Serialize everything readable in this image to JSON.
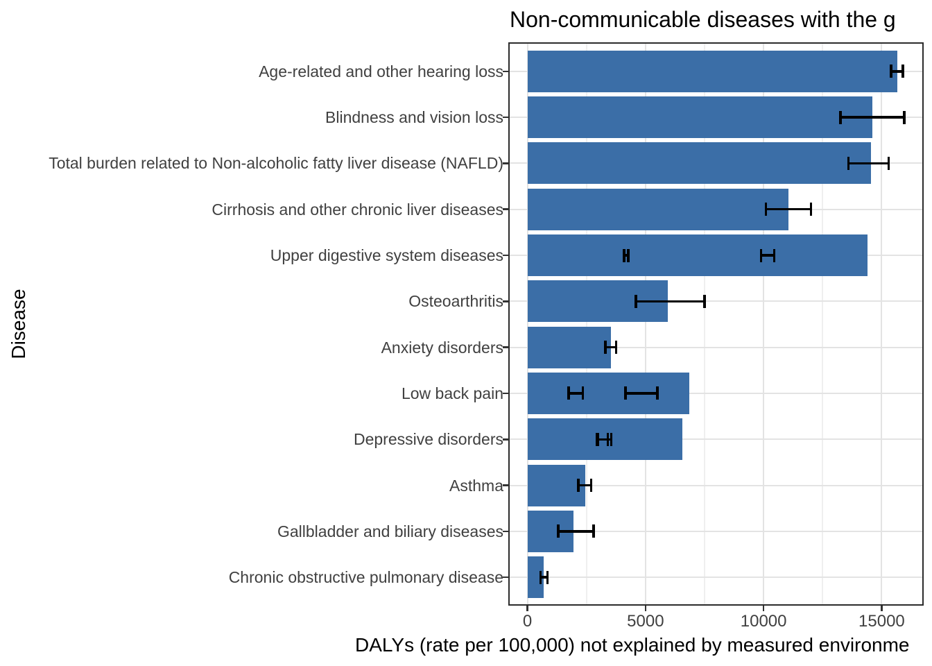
{
  "chart_data": {
    "type": "bar",
    "orientation": "horizontal",
    "title": "Non-communicable diseases with the g",
    "xlabel": "DALYs (rate per 100,000) not explained by measured environme",
    "ylabel": "Disease",
    "legend": "none",
    "grid": "on",
    "xlim": [
      -780,
      16720
    ],
    "x_major_ticks": [
      0,
      5000,
      10000,
      15000
    ],
    "x_tick_labels": [
      "0",
      "5000",
      "10000",
      "15000"
    ],
    "x_minor_ticks": [
      2500,
      7500,
      12500
    ],
    "bar_color": "#3B6EA7",
    "error_bar_color": "#000000",
    "gridline_major_color": "#E3E3E3",
    "gridline_minor_color": "#EFEFEF",
    "panel_border_color": "#2B2B2B",
    "axis_text_color": "#404040",
    "categories": [
      "Age-related and other hearing loss",
      "Blindness and vision loss",
      "Total burden related to Non-alcoholic fatty liver disease (NAFLD)",
      "Cirrhosis and other chronic liver diseases",
      "Upper digestive system diseases",
      "Osteoarthritis",
      "Anxiety disorders",
      "Low back pain",
      "Depressive disorders",
      "Asthma",
      "Gallbladder and biliary diseases",
      "Chronic obstructive pulmonary disease"
    ],
    "values": [
      15650,
      14600,
      14550,
      11050,
      14400,
      5950,
      3550,
      6850,
      6550,
      2450,
      1950,
      700
    ],
    "error_bars": [
      [
        [
          15400,
          15900
        ]
      ],
      [
        [
          13250,
          15950
        ]
      ],
      [
        [
          13600,
          15300
        ]
      ],
      [
        [
          10100,
          12000
        ]
      ],
      [
        [
          4100,
          4270
        ],
        [
          9900,
          10450
        ]
      ],
      [
        [
          4600,
          7500
        ]
      ],
      [
        [
          3300,
          3750
        ]
      ],
      [
        [
          1750,
          2350
        ],
        [
          4150,
          5500
        ]
      ],
      [
        [
          2950,
          3400
        ],
        [
          3000,
          3550
        ]
      ],
      [
        [
          2150,
          2700
        ]
      ],
      [
        [
          1300,
          2800
        ]
      ],
      [
        [
          550,
          850
        ]
      ]
    ]
  }
}
